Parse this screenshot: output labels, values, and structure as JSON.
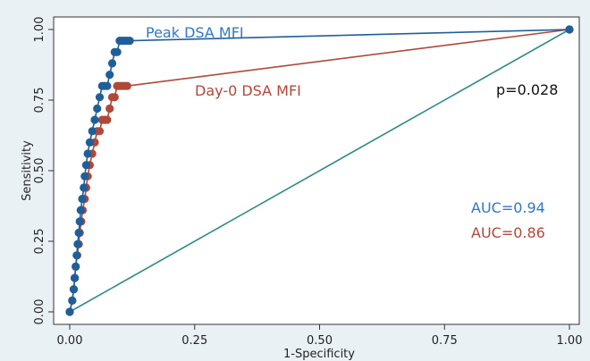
{
  "chart_data": {
    "type": "line",
    "title": "",
    "xlabel": "1-Specificity",
    "ylabel": "Sensitivity",
    "xlim": [
      0,
      1
    ],
    "ylim": [
      0,
      1
    ],
    "x_ticks": [
      "0.00",
      "0.25",
      "0.50",
      "0.75",
      "1.00"
    ],
    "y_ticks": [
      "0.00",
      "0.25",
      "0.50",
      "0.75",
      "1.00"
    ],
    "grid": false,
    "colors": {
      "peak": "#1f5f99",
      "day0": "#b0483a",
      "reference": "#2f8a84",
      "background": "#eaf1f5"
    },
    "series": [
      {
        "name": "Peak DSA MFI",
        "color": "#1f5f99",
        "x": [
          0.0,
          0.005,
          0.008,
          0.01,
          0.012,
          0.014,
          0.016,
          0.018,
          0.02,
          0.022,
          0.025,
          0.028,
          0.03,
          0.033,
          0.036,
          0.04,
          0.045,
          0.05,
          0.055,
          0.06,
          0.065,
          0.07,
          0.075,
          0.08,
          0.085,
          0.09,
          0.095,
          0.1,
          0.105,
          0.11,
          0.115,
          0.12,
          1.0
        ],
        "y": [
          0.0,
          0.04,
          0.08,
          0.12,
          0.16,
          0.2,
          0.24,
          0.28,
          0.32,
          0.36,
          0.4,
          0.44,
          0.48,
          0.52,
          0.56,
          0.6,
          0.64,
          0.68,
          0.72,
          0.76,
          0.8,
          0.8,
          0.8,
          0.84,
          0.88,
          0.92,
          0.92,
          0.96,
          0.96,
          0.96,
          0.96,
          0.96,
          1.0
        ]
      },
      {
        "name": "Day-0 DSA MFI",
        "color": "#b0483a",
        "x": [
          0.0,
          0.005,
          0.008,
          0.01,
          0.012,
          0.015,
          0.018,
          0.02,
          0.023,
          0.026,
          0.03,
          0.033,
          0.036,
          0.04,
          0.045,
          0.05,
          0.055,
          0.06,
          0.065,
          0.07,
          0.075,
          0.08,
          0.085,
          0.09,
          0.095,
          0.1,
          0.105,
          0.11,
          0.115,
          1.0
        ],
        "y": [
          0.0,
          0.04,
          0.08,
          0.12,
          0.16,
          0.2,
          0.24,
          0.28,
          0.32,
          0.36,
          0.4,
          0.44,
          0.48,
          0.52,
          0.56,
          0.6,
          0.64,
          0.64,
          0.68,
          0.68,
          0.68,
          0.72,
          0.76,
          0.76,
          0.8,
          0.8,
          0.8,
          0.8,
          0.8,
          1.0
        ]
      },
      {
        "name": "",
        "color": "#2f8a84",
        "x": [
          0.0,
          1.0
        ],
        "y": [
          0.0,
          1.0
        ]
      }
    ],
    "annotations": {
      "peak_label": "Peak DSA MFI",
      "day0_label": "Day-0 DSA MFI",
      "p_value": "p=0.028",
      "auc_peak": "AUC=0.94",
      "auc_day0": "AUC=0.86"
    }
  }
}
